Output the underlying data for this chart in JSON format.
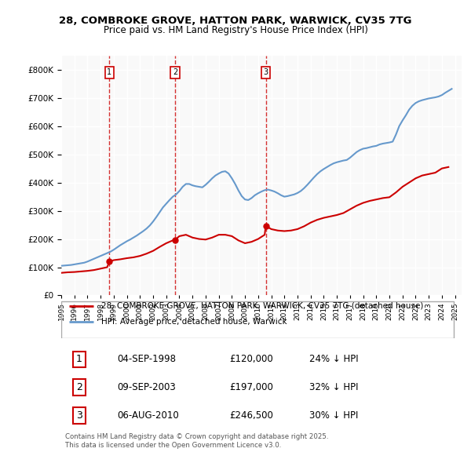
{
  "title": "28, COMBROKE GROVE, HATTON PARK, WARWICK, CV35 7TG",
  "subtitle": "Price paid vs. HM Land Registry's House Price Index (HPI)",
  "hpi_color": "#6699CC",
  "price_color": "#CC0000",
  "background_color": "#f9f9f9",
  "ylim": [
    0,
    850000
  ],
  "yticks": [
    0,
    100000,
    200000,
    300000,
    400000,
    500000,
    600000,
    700000,
    800000
  ],
  "purchases": [
    {
      "num": 1,
      "date": "04-SEP-1998",
      "price": 120000,
      "pct": "24%",
      "year": 1998.67
    },
    {
      "num": 2,
      "date": "09-SEP-2003",
      "price": 197000,
      "pct": "32%",
      "year": 2003.67
    },
    {
      "num": 3,
      "date": "06-AUG-2010",
      "price": 246500,
      "pct": "30%",
      "year": 2010.58
    }
  ],
  "legend_label_red": "28, COMBROKE GROVE, HATTON PARK, WARWICK, CV35 7TG (detached house)",
  "legend_label_blue": "HPI: Average price, detached house, Warwick",
  "footnote": "Contains HM Land Registry data © Crown copyright and database right 2025.\nThis data is licensed under the Open Government Licence v3.0.",
  "hpi_data": {
    "years": [
      1995,
      1995.25,
      1995.5,
      1995.75,
      1996,
      1996.25,
      1996.5,
      1996.75,
      1997,
      1997.25,
      1997.5,
      1997.75,
      1998,
      1998.25,
      1998.5,
      1998.75,
      1999,
      1999.25,
      1999.5,
      1999.75,
      2000,
      2000.25,
      2000.5,
      2000.75,
      2001,
      2001.25,
      2001.5,
      2001.75,
      2002,
      2002.25,
      2002.5,
      2002.75,
      2003,
      2003.25,
      2003.5,
      2003.75,
      2004,
      2004.25,
      2004.5,
      2004.75,
      2005,
      2005.25,
      2005.5,
      2005.75,
      2006,
      2006.25,
      2006.5,
      2006.75,
      2007,
      2007.25,
      2007.5,
      2007.75,
      2008,
      2008.25,
      2008.5,
      2008.75,
      2009,
      2009.25,
      2009.5,
      2009.75,
      2010,
      2010.25,
      2010.5,
      2010.75,
      2011,
      2011.25,
      2011.5,
      2011.75,
      2012,
      2012.25,
      2012.5,
      2012.75,
      2013,
      2013.25,
      2013.5,
      2013.75,
      2014,
      2014.25,
      2014.5,
      2014.75,
      2015,
      2015.25,
      2015.5,
      2015.75,
      2016,
      2016.25,
      2016.5,
      2016.75,
      2017,
      2017.25,
      2017.5,
      2017.75,
      2018,
      2018.25,
      2018.5,
      2018.75,
      2019,
      2019.25,
      2019.5,
      2019.75,
      2020,
      2020.25,
      2020.5,
      2020.75,
      2021,
      2021.25,
      2021.5,
      2021.75,
      2022,
      2022.25,
      2022.5,
      2022.75,
      2023,
      2023.25,
      2023.5,
      2023.75,
      2024,
      2024.25,
      2024.5,
      2024.75
    ],
    "values": [
      105000,
      106000,
      107000,
      108000,
      110000,
      112000,
      114000,
      116000,
      120000,
      125000,
      130000,
      135000,
      140000,
      145000,
      150000,
      155000,
      162000,
      170000,
      178000,
      185000,
      192000,
      198000,
      205000,
      212000,
      220000,
      228000,
      237000,
      248000,
      262000,
      278000,
      295000,
      312000,
      325000,
      338000,
      350000,
      358000,
      370000,
      385000,
      395000,
      395000,
      390000,
      387000,
      385000,
      383000,
      392000,
      403000,
      415000,
      425000,
      432000,
      438000,
      440000,
      432000,
      415000,
      395000,
      372000,
      352000,
      340000,
      338000,
      345000,
      355000,
      362000,
      368000,
      373000,
      375000,
      372000,
      368000,
      362000,
      355000,
      350000,
      352000,
      355000,
      358000,
      363000,
      370000,
      380000,
      392000,
      405000,
      418000,
      430000,
      440000,
      448000,
      455000,
      462000,
      468000,
      472000,
      475000,
      478000,
      480000,
      488000,
      498000,
      508000,
      515000,
      520000,
      522000,
      525000,
      528000,
      530000,
      535000,
      538000,
      540000,
      542000,
      545000,
      570000,
      600000,
      620000,
      638000,
      658000,
      672000,
      682000,
      688000,
      692000,
      695000,
      698000,
      700000,
      702000,
      705000,
      710000,
      718000,
      725000,
      732000
    ]
  },
  "price_data": {
    "years": [
      1995,
      1995.5,
      1996,
      1996.5,
      1997,
      1997.5,
      1998,
      1998.5,
      1998.67,
      1999,
      1999.5,
      2000,
      2000.5,
      2001,
      2001.5,
      2002,
      2002.5,
      2003,
      2003.5,
      2003.67,
      2004,
      2004.5,
      2005,
      2005.5,
      2006,
      2006.5,
      2007,
      2007.5,
      2008,
      2008.5,
      2009,
      2009.5,
      2010,
      2010.5,
      2010.58,
      2011,
      2011.5,
      2012,
      2012.5,
      2013,
      2013.5,
      2014,
      2014.5,
      2015,
      2015.5,
      2016,
      2016.5,
      2017,
      2017.5,
      2018,
      2018.5,
      2019,
      2019.5,
      2020,
      2020.5,
      2021,
      2021.5,
      2022,
      2022.5,
      2023,
      2023.5,
      2024,
      2024.5
    ],
    "values": [
      80000,
      82000,
      83000,
      85000,
      87000,
      90000,
      95000,
      100000,
      120000,
      125000,
      128000,
      132000,
      135000,
      140000,
      148000,
      158000,
      172000,
      185000,
      195000,
      197000,
      210000,
      215000,
      205000,
      200000,
      198000,
      205000,
      215000,
      215000,
      210000,
      195000,
      185000,
      190000,
      200000,
      215000,
      246500,
      235000,
      230000,
      228000,
      230000,
      235000,
      245000,
      258000,
      268000,
      275000,
      280000,
      285000,
      292000,
      305000,
      318000,
      328000,
      335000,
      340000,
      345000,
      348000,
      365000,
      385000,
      400000,
      415000,
      425000,
      430000,
      435000,
      450000,
      455000
    ]
  }
}
